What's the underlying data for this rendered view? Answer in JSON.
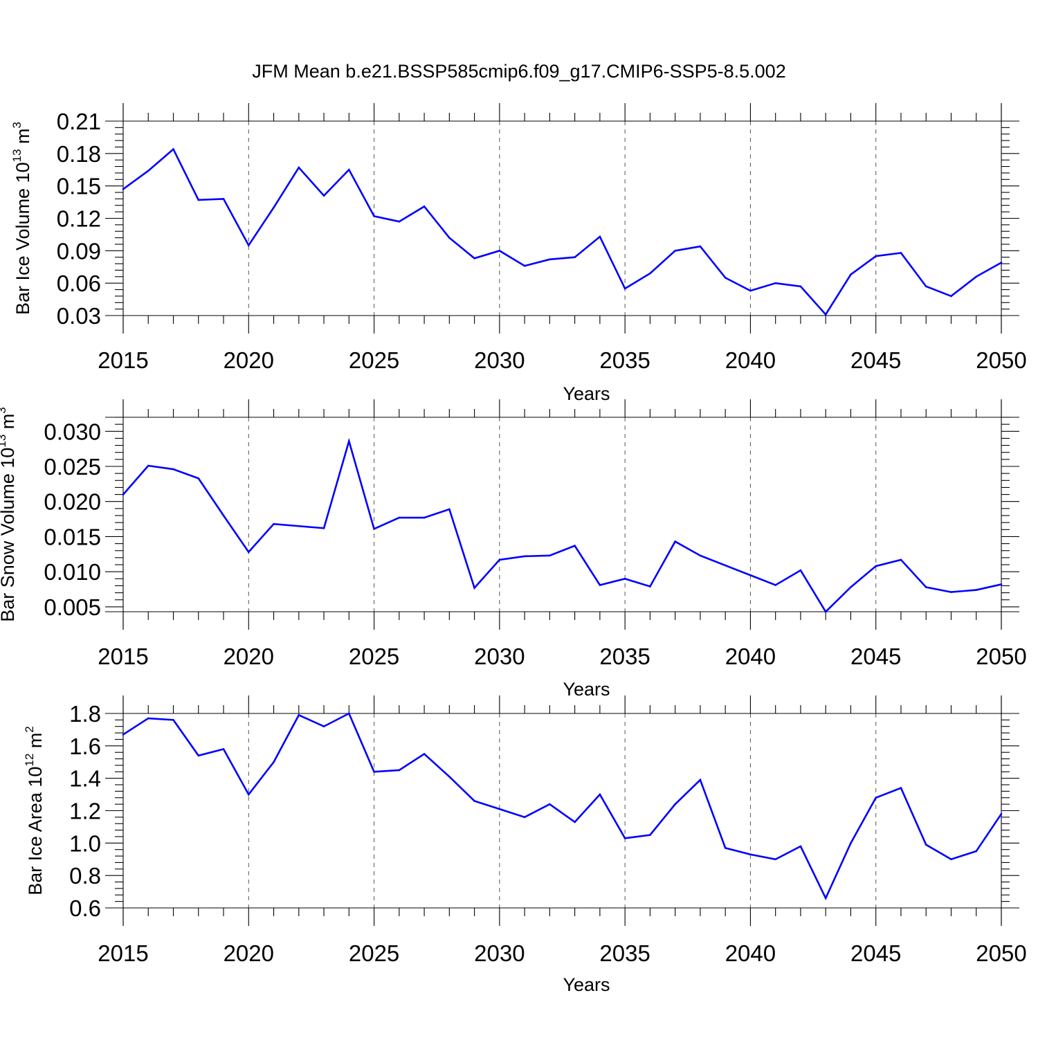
{
  "figure_title": "JFM Mean b.e21.BSSP585cmip6.f09_g17.CMIP6-SSP5-8.5.002",
  "line_color": "#0000ff",
  "chart_data": [
    {
      "type": "line",
      "title": "JFM Mean b.e21.BSSP585cmip6.f09_g17.CMIP6-SSP5-8.5.002",
      "xlabel": "Years",
      "ylabel_main": "Bar Ice Volume 10",
      "ylabel_sup": "13",
      "ylabel_unit": " m",
      "ylabel_unit_sup": "3",
      "xlim": [
        2015,
        2050
      ],
      "ylim": [
        0.03,
        0.21
      ],
      "grid": "vertical dashed at major x ticks",
      "x_ticks": [
        2015,
        2020,
        2025,
        2030,
        2035,
        2040,
        2045,
        2050
      ],
      "x_tick_labels": [
        "2015",
        "2020",
        "2025",
        "2030",
        "2035",
        "2040",
        "2045",
        "2050"
      ],
      "y_ticks": [
        0.03,
        0.06,
        0.09,
        0.12,
        0.15,
        0.18,
        0.21
      ],
      "y_tick_labels": [
        "0.03",
        "0.06",
        "0.09",
        "0.12",
        "0.15",
        "0.18",
        "0.21"
      ],
      "x": [
        2015,
        2016,
        2017,
        2018,
        2019,
        2020,
        2021,
        2022,
        2023,
        2024,
        2025,
        2026,
        2027,
        2028,
        2029,
        2030,
        2031,
        2032,
        2033,
        2034,
        2035,
        2036,
        2037,
        2038,
        2039,
        2040,
        2041,
        2042,
        2043,
        2044,
        2045,
        2046,
        2047,
        2048,
        2049,
        2050
      ],
      "series": [
        {
          "name": "Bar Ice Volume",
          "values": [
            0.147,
            0.164,
            0.184,
            0.137,
            0.138,
            0.095,
            0.13,
            0.167,
            0.141,
            0.165,
            0.122,
            0.117,
            0.131,
            0.102,
            0.083,
            0.09,
            0.076,
            0.082,
            0.084,
            0.103,
            0.055,
            0.069,
            0.09,
            0.094,
            0.065,
            0.053,
            0.06,
            0.057,
            0.031,
            0.068,
            0.085,
            0.088,
            0.057,
            0.048,
            0.066,
            0.079
          ]
        }
      ]
    },
    {
      "type": "line",
      "xlabel": "Years",
      "ylabel_main": "Bar Snow Volume 10",
      "ylabel_sup": "13",
      "ylabel_unit": " m",
      "ylabel_unit_sup": "3",
      "xlim": [
        2015,
        2050
      ],
      "ylim": [
        0.0043,
        0.032
      ],
      "grid": "vertical dashed at major x ticks",
      "x_ticks": [
        2015,
        2020,
        2025,
        2030,
        2035,
        2040,
        2045,
        2050
      ],
      "x_tick_labels": [
        "2015",
        "2020",
        "2025",
        "2030",
        "2035",
        "2040",
        "2045",
        "2050"
      ],
      "y_ticks": [
        0.005,
        0.01,
        0.015,
        0.02,
        0.025,
        0.03
      ],
      "y_tick_labels": [
        "0.005",
        "0.010",
        "0.015",
        "0.020",
        "0.025",
        "0.030"
      ],
      "x": [
        2015,
        2016,
        2017,
        2018,
        2019,
        2020,
        2021,
        2022,
        2023,
        2024,
        2025,
        2026,
        2027,
        2028,
        2029,
        2030,
        2031,
        2032,
        2033,
        2034,
        2035,
        2036,
        2037,
        2038,
        2039,
        2040,
        2041,
        2042,
        2043,
        2044,
        2045,
        2046,
        2047,
        2048,
        2049,
        2050
      ],
      "series": [
        {
          "name": "Bar Snow Volume",
          "values": [
            0.021,
            0.0251,
            0.0246,
            0.0233,
            0.018,
            0.0128,
            0.0168,
            0.0165,
            0.0162,
            0.0286,
            0.0161,
            0.0177,
            0.0177,
            0.0189,
            0.0077,
            0.0117,
            0.0122,
            0.0123,
            0.0137,
            0.0081,
            0.009,
            0.0079,
            0.0143,
            0.0123,
            0.0109,
            0.0095,
            0.0081,
            0.0102,
            0.0043,
            0.0078,
            0.0108,
            0.0117,
            0.0078,
            0.0071,
            0.0074,
            0.0082
          ]
        }
      ]
    },
    {
      "type": "line",
      "xlabel": "Years",
      "ylabel_main": "Bar Ice Area 10",
      "ylabel_sup": "12",
      "ylabel_unit": " m",
      "ylabel_unit_sup": "2",
      "xlim": [
        2015,
        2050
      ],
      "ylim": [
        0.6,
        1.8
      ],
      "grid": "vertical dashed at major x ticks",
      "x_ticks": [
        2015,
        2020,
        2025,
        2030,
        2035,
        2040,
        2045,
        2050
      ],
      "x_tick_labels": [
        "2015",
        "2020",
        "2025",
        "2030",
        "2035",
        "2040",
        "2045",
        "2050"
      ],
      "y_ticks": [
        0.6,
        0.8,
        1.0,
        1.2,
        1.4,
        1.6,
        1.8
      ],
      "y_tick_labels": [
        "0.6",
        "0.8",
        "1.0",
        "1.2",
        "1.4",
        "1.6",
        "1.8"
      ],
      "x": [
        2015,
        2016,
        2017,
        2018,
        2019,
        2020,
        2021,
        2022,
        2023,
        2024,
        2025,
        2026,
        2027,
        2028,
        2029,
        2030,
        2031,
        2032,
        2033,
        2034,
        2035,
        2036,
        2037,
        2038,
        2039,
        2040,
        2041,
        2042,
        2043,
        2044,
        2045,
        2046,
        2047,
        2048,
        2049,
        2050
      ],
      "series": [
        {
          "name": "Bar Ice Area",
          "values": [
            1.67,
            1.77,
            1.76,
            1.54,
            1.58,
            1.3,
            1.5,
            1.79,
            1.72,
            1.8,
            1.44,
            1.45,
            1.55,
            1.41,
            1.26,
            1.21,
            1.16,
            1.24,
            1.13,
            1.3,
            1.03,
            1.05,
            1.24,
            1.39,
            0.97,
            0.93,
            0.9,
            0.98,
            0.66,
            1.0,
            1.28,
            1.34,
            0.99,
            0.9,
            0.95,
            1.18
          ]
        }
      ]
    }
  ]
}
